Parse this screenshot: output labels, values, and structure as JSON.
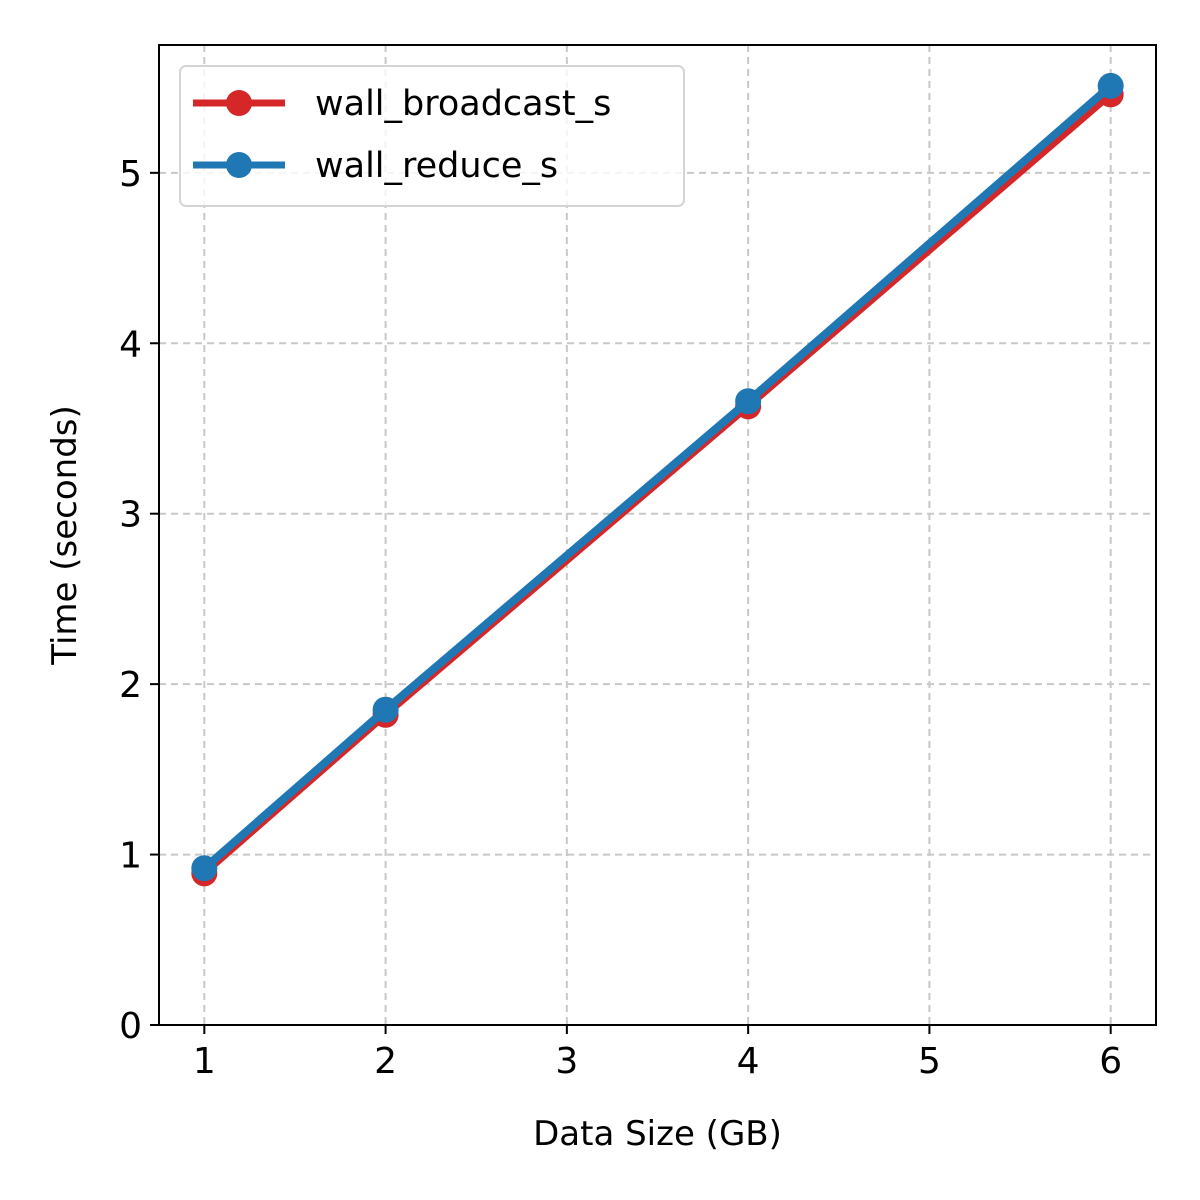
{
  "chart_data": {
    "type": "line",
    "title": "",
    "xlabel": "Data Size (GB)",
    "ylabel": "Time (seconds)",
    "xlim": [
      0.75,
      6.25
    ],
    "ylim": [
      0,
      5.75
    ],
    "xticks": [
      1,
      2,
      3,
      4,
      5,
      6
    ],
    "yticks": [
      0,
      1,
      2,
      3,
      4,
      5
    ],
    "grid": true,
    "legend_position": "top-left",
    "x": [
      1,
      2,
      4,
      6
    ],
    "series": [
      {
        "name": "wall_broadcast_s",
        "color": "#d62728",
        "values": [
          0.89,
          1.82,
          3.63,
          5.46
        ]
      },
      {
        "name": "wall_reduce_s",
        "color": "#1f77b4",
        "values": [
          0.92,
          1.85,
          3.66,
          5.51
        ]
      }
    ]
  }
}
